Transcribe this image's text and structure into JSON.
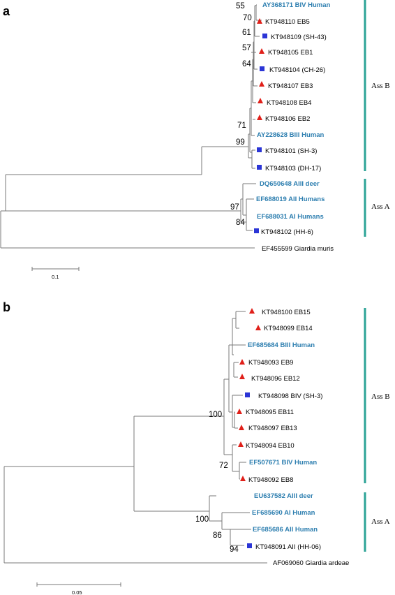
{
  "colors": {
    "reference_leaf": "#2e7fb0",
    "clade_bar": "#2ba396",
    "triangle": "#e0201a",
    "square": "#2b35d6",
    "branch": "#7a7a7a"
  },
  "panels": [
    {
      "letter": "a",
      "leaves": [
        {
          "label": "AY368171 BIV Human",
          "ref": true,
          "marker": null
        },
        {
          "label": "KT948110 EB5",
          "ref": false,
          "marker": "triangle"
        },
        {
          "label": "KT948109 (SH-43)",
          "ref": false,
          "marker": "square"
        },
        {
          "label": "KT948105 EB1",
          "ref": false,
          "marker": "triangle"
        },
        {
          "label": "KT948104 (CH-26)",
          "ref": false,
          "marker": "square"
        },
        {
          "label": "KT948107 EB3",
          "ref": false,
          "marker": "triangle"
        },
        {
          "label": "KT948108 EB4",
          "ref": false,
          "marker": "triangle"
        },
        {
          "label": "KT948106 EB2",
          "ref": false,
          "marker": "triangle"
        },
        {
          "label": "AY228628 BIII Human",
          "ref": true,
          "marker": null
        },
        {
          "label": "KT948101 (SH-3)",
          "ref": false,
          "marker": "square"
        },
        {
          "label": "KT948103 (DH-17)",
          "ref": false,
          "marker": "square"
        },
        {
          "label": "DQ650648 AIII deer",
          "ref": true,
          "marker": null
        },
        {
          "label": "EF688019 AII  Humans",
          "ref": true,
          "marker": null
        },
        {
          "label": "EF688031 AI Humans",
          "ref": true,
          "marker": null
        },
        {
          "label": "KT948102 (HH-6)",
          "ref": false,
          "marker": "square"
        },
        {
          "label": "EF455599 Giardia muris",
          "ref": false,
          "marker": null
        }
      ],
      "bootstraps": [
        "55",
        "70",
        "61",
        "57",
        "64",
        "71",
        "99",
        "97",
        "84"
      ],
      "clades": [
        "Ass B",
        "Ass A"
      ],
      "scale": "0.1"
    },
    {
      "letter": "b",
      "leaves": [
        {
          "label": "KT948100 EB15",
          "ref": false,
          "marker": "triangle"
        },
        {
          "label": "KT948099 EB14",
          "ref": false,
          "marker": "triangle"
        },
        {
          "label": "EF685684 BIII Human",
          "ref": true,
          "marker": null
        },
        {
          "label": "KT948093 EB9",
          "ref": false,
          "marker": "triangle"
        },
        {
          "label": "KT948096 EB12",
          "ref": false,
          "marker": "triangle"
        },
        {
          "label": "KT948098 BIV  (SH-3)",
          "ref": false,
          "marker": "square"
        },
        {
          "label": "KT948095 EB11",
          "ref": false,
          "marker": "triangle"
        },
        {
          "label": "KT948097 EB13",
          "ref": false,
          "marker": "triangle"
        },
        {
          "label": "KT948094 EB10",
          "ref": false,
          "marker": "triangle"
        },
        {
          "label": "EF507671 BIV Human",
          "ref": true,
          "marker": null
        },
        {
          "label": "KT948092 EB8",
          "ref": false,
          "marker": "triangle"
        },
        {
          "label": "EU637582 AIII deer",
          "ref": true,
          "marker": null
        },
        {
          "label": "EF685690 AI Human",
          "ref": true,
          "marker": null
        },
        {
          "label": "EF685686 AII Human",
          "ref": true,
          "marker": null
        },
        {
          "label": "KT948091 AII (HH-06)",
          "ref": false,
          "marker": "square"
        },
        {
          "label": "AF069060 Giardia ardeae",
          "ref": false,
          "marker": null
        }
      ],
      "bootstraps": [
        "100",
        "72",
        "100",
        "86",
        "94"
      ],
      "clades": [
        "Ass B",
        "Ass A"
      ],
      "scale": "0.05"
    }
  ]
}
